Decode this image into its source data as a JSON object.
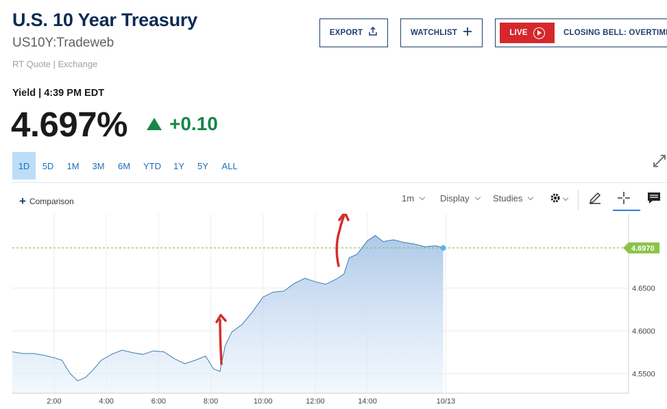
{
  "header": {
    "title": "U.S. 10 Year Treasury",
    "symbol": "US10Y:Tradeweb",
    "quote_source": "RT Quote | Exchange"
  },
  "buttons": {
    "export": "EXPORT",
    "watchlist": "WATCHLIST",
    "live_tag": "LIVE",
    "live_program": "CLOSING BELL: OVERTIME"
  },
  "quote": {
    "label": "Yield | 4:39 PM EDT",
    "price": "4.697%",
    "change": "+0.10",
    "change_color": "#17854a"
  },
  "ranges": [
    "1D",
    "5D",
    "1M",
    "3M",
    "6M",
    "YTD",
    "1Y",
    "5Y",
    "ALL"
  ],
  "active_range": "1D",
  "toolbar": {
    "comparison": "Comparison",
    "interval": "1m",
    "display": "Display",
    "studies": "Studies"
  },
  "icons": {
    "export": "share-upload-icon",
    "watchlist": "plus-icon",
    "live": "play-icon",
    "expand": "expand-icon",
    "settings": "gear-icon",
    "draw": "pencil-icon",
    "crosshair": "crosshair-icon",
    "comment": "comment-icon"
  },
  "chart_data": {
    "type": "area",
    "x_labels": [
      "2:00",
      "4:00",
      "6:00",
      "8:00",
      "10:00",
      "12:00",
      "14:00",
      "10/13"
    ],
    "y_labels": [
      "4.5500",
      "4.6000",
      "4.6500"
    ],
    "last_price_label": "4.6970",
    "last_value": 4.697,
    "ylim": [
      4.527,
      4.737
    ],
    "xlim_hours": [
      0.4,
      24
    ],
    "grid": true,
    "line_color": "#3a7ab5",
    "accent_color": "#7cb342",
    "annotations": "two red hand-drawn upward arrows near 8:00 and 13:00",
    "series": [
      {
        "values": [
          [
            0.4,
            4.575
          ],
          [
            0.8,
            4.574
          ],
          [
            1.2,
            4.573
          ],
          [
            1.6,
            4.572
          ],
          [
            2.0,
            4.568
          ],
          [
            2.3,
            4.566
          ],
          [
            2.6,
            4.55
          ],
          [
            2.9,
            4.542
          ],
          [
            3.2,
            4.545
          ],
          [
            3.5,
            4.555
          ],
          [
            3.8,
            4.565
          ],
          [
            4.2,
            4.573
          ],
          [
            4.6,
            4.577
          ],
          [
            5.0,
            4.575
          ],
          [
            5.4,
            4.572
          ],
          [
            5.8,
            4.577
          ],
          [
            6.2,
            4.575
          ],
          [
            6.6,
            4.568
          ],
          [
            7.0,
            4.561
          ],
          [
            7.4,
            4.566
          ],
          [
            7.8,
            4.57
          ],
          [
            8.1,
            4.556
          ],
          [
            8.35,
            4.552
          ],
          [
            8.55,
            4.583
          ],
          [
            8.8,
            4.598
          ],
          [
            9.2,
            4.608
          ],
          [
            9.6,
            4.622
          ],
          [
            10.0,
            4.64
          ],
          [
            10.4,
            4.645
          ],
          [
            10.8,
            4.647
          ],
          [
            11.2,
            4.655
          ],
          [
            11.6,
            4.662
          ],
          [
            12.0,
            4.657
          ],
          [
            12.4,
            4.655
          ],
          [
            12.8,
            4.66
          ],
          [
            13.1,
            4.667
          ],
          [
            13.3,
            4.685
          ],
          [
            13.6,
            4.69
          ],
          [
            14.0,
            4.705
          ],
          [
            14.3,
            4.712
          ],
          [
            14.6,
            4.704
          ],
          [
            15.0,
            4.707
          ],
          [
            15.4,
            4.703
          ],
          [
            15.8,
            4.702
          ],
          [
            16.2,
            4.698
          ],
          [
            16.6,
            4.7
          ],
          [
            16.9,
            4.697
          ]
        ]
      }
    ]
  }
}
